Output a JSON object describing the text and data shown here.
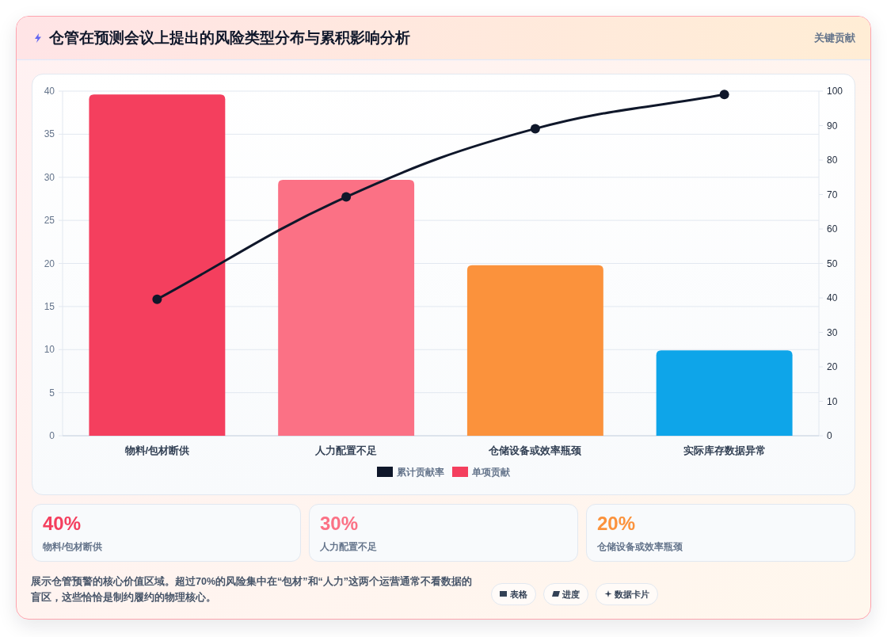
{
  "chart_data": {
    "type": "bar",
    "title": "仓管在预测会议上提出的风险类型分布与累积影响分析",
    "subtitle": "关键贡献",
    "categories": [
      "物料/包材断供",
      "人力配置不足",
      "仓储设备或效率瓶颈",
      "实际库存数据异常"
    ],
    "series": [
      {
        "name": "累计贡献率",
        "type": "line",
        "axis": "y2",
        "color": "#0f172a",
        "values": [
          39.6,
          69.3,
          89.1,
          99
        ]
      },
      {
        "name": "单项贡献",
        "color": "#f43f5e",
        "colors": [
          "#f43f5e",
          "#fb7185",
          "#fb923c",
          "#0ea5e9"
        ],
        "values": [
          39.6,
          29.7,
          19.8,
          9.9
        ]
      }
    ],
    "ylim": [
      0,
      40
    ],
    "yticks": [
      0,
      5,
      10,
      15,
      20,
      25,
      30,
      35,
      40
    ],
    "y2lim": [
      0,
      100
    ],
    "y2ticks": [
      0,
      10,
      20,
      30,
      40,
      50,
      60,
      70,
      80,
      90,
      100
    ],
    "grid": "y",
    "legend": "bottom",
    "marker": "circle",
    "line_style": "solid",
    "annotations": [
      "40%",
      "物料/包材断供",
      "30%",
      "人力配置不足",
      "20%",
      "仓储设备或效率瓶颈",
      "展示仓管预警的核心价值区域。超过70%的风险集中在“包材”和“人力”这两个运营通常不看数据的盲区，这些恰恰是制约履约的物理核心。",
      "表格",
      "进度",
      "数据卡片"
    ]
  }
}
